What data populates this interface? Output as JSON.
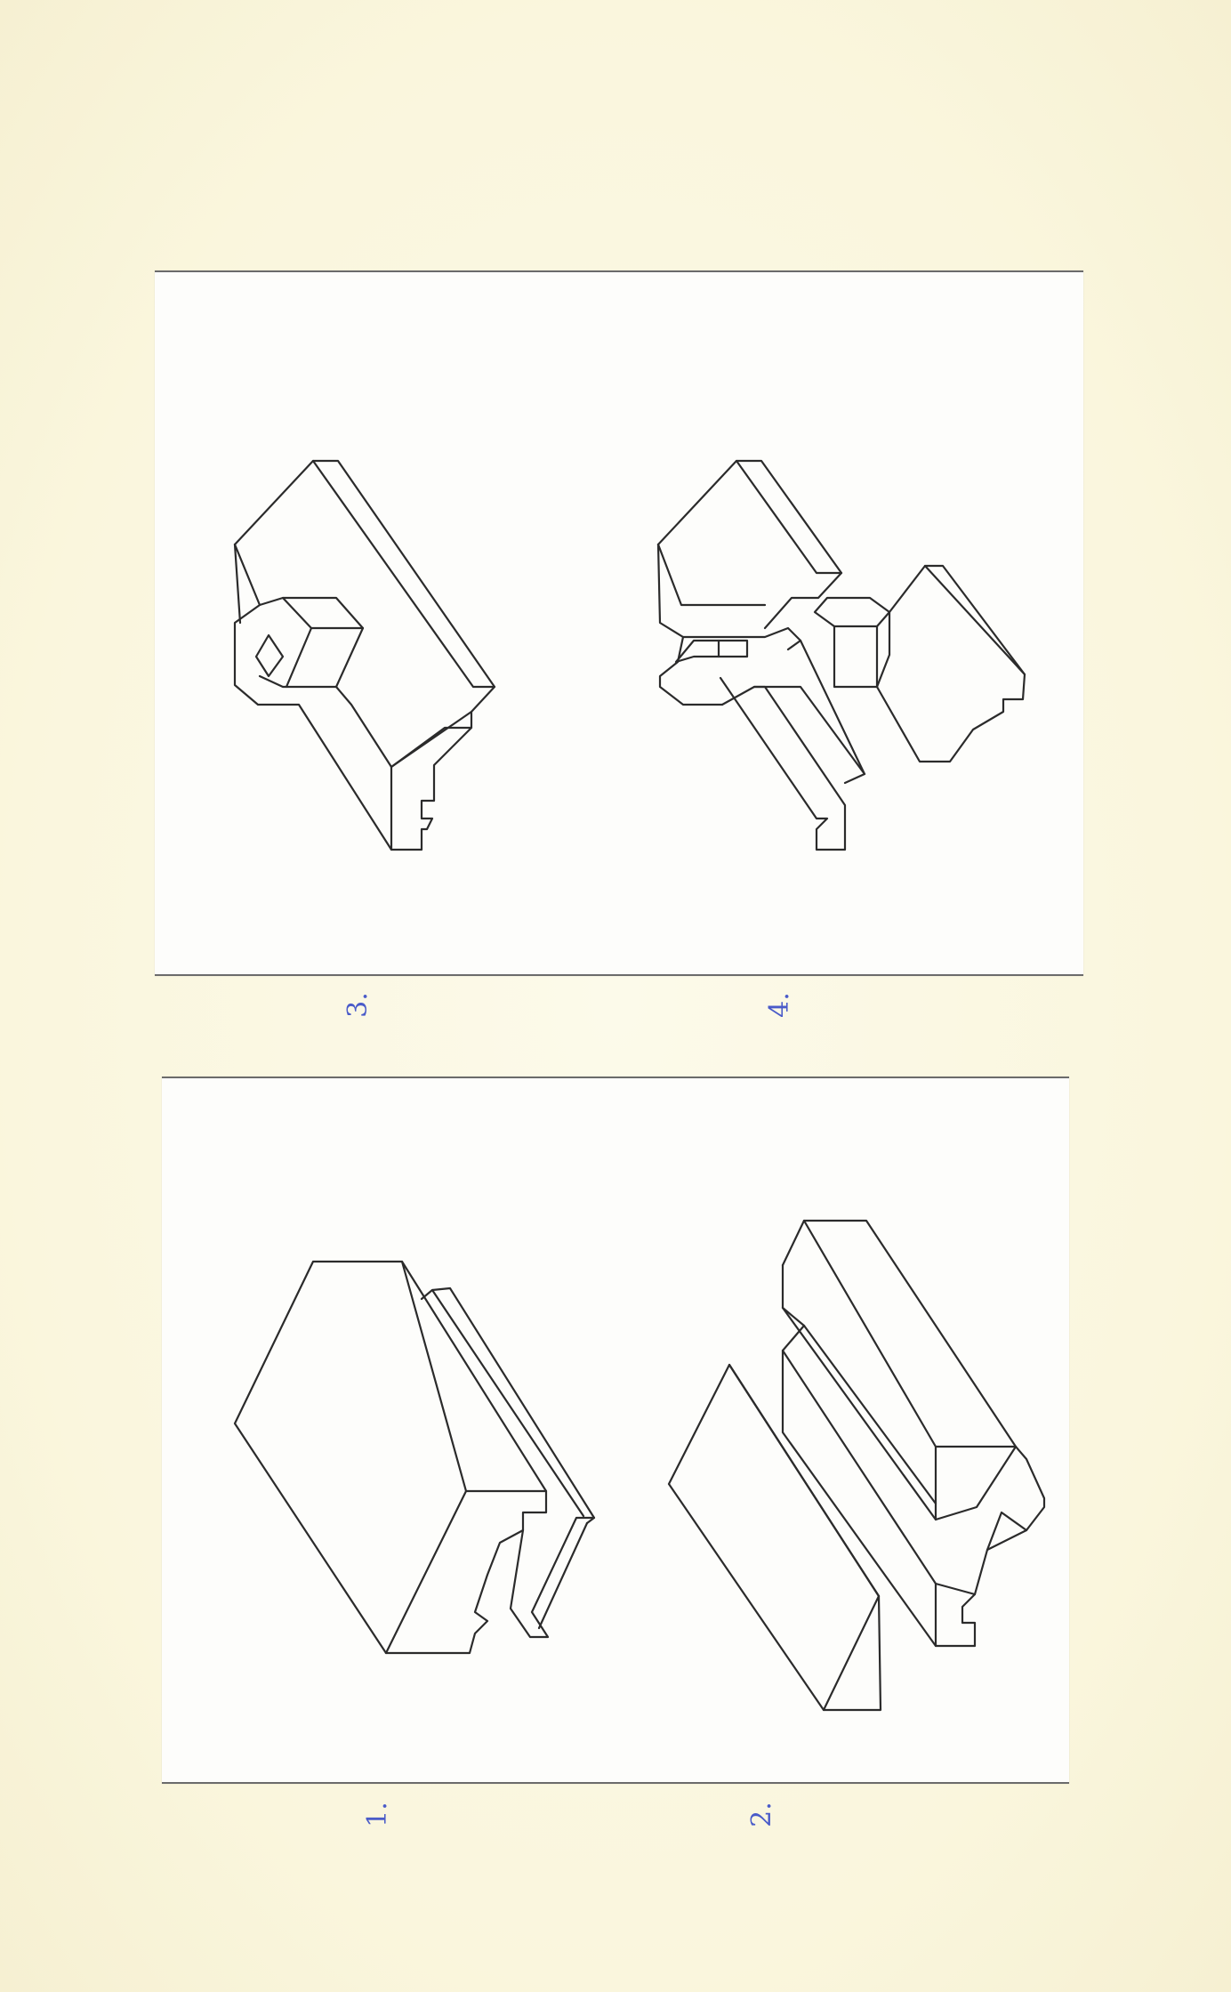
{
  "figures": [
    {
      "id": "fig-3",
      "label": "3."
    },
    {
      "id": "fig-4",
      "label": "4."
    },
    {
      "id": "fig-1",
      "label": "1."
    },
    {
      "id": "fig-2",
      "label": "2."
    }
  ],
  "colors": {
    "paper": "#fbf8e3",
    "panel": "#fdfdfb",
    "ink": "#2b2b2b",
    "label_ink": "#4a5bc9"
  }
}
